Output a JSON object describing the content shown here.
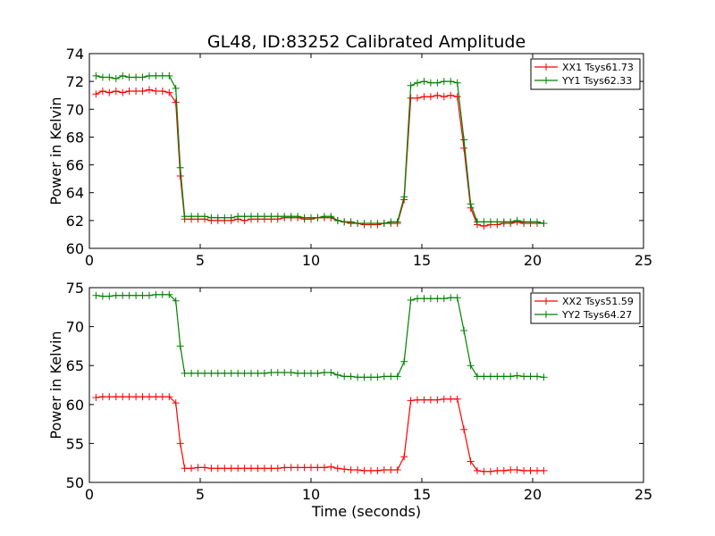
{
  "title": "GL48, ID:83252 Calibrated Amplitude",
  "xlabel": "Time (seconds)",
  "chart_data": [
    {
      "type": "line",
      "ylabel": "Power in Kelvin",
      "xlim": [
        0,
        25
      ],
      "ylim": [
        60,
        74
      ],
      "xticks": [
        "0",
        "5",
        "10",
        "15",
        "20",
        "25"
      ],
      "yticks": [
        "60",
        "62",
        "64",
        "66",
        "68",
        "70",
        "72",
        "74"
      ],
      "legend_position": "top-right",
      "series": [
        {
          "name": "XX1 Tsys61.73",
          "color": "#ff0000",
          "x": [
            0.3,
            0.6,
            0.9,
            1.2,
            1.5,
            1.8,
            2.1,
            2.4,
            2.7,
            3.0,
            3.3,
            3.6,
            3.9,
            4.1,
            4.3,
            4.6,
            4.9,
            5.2,
            5.5,
            5.8,
            6.1,
            6.4,
            6.7,
            7.0,
            7.3,
            7.6,
            7.9,
            8.2,
            8.5,
            8.8,
            9.1,
            9.4,
            9.7,
            10.0,
            10.3,
            10.6,
            10.9,
            11.2,
            11.5,
            11.8,
            12.1,
            12.4,
            12.7,
            13.0,
            13.3,
            13.6,
            13.9,
            14.2,
            14.5,
            14.8,
            15.1,
            15.4,
            15.7,
            16.0,
            16.3,
            16.6,
            16.9,
            17.2,
            17.5,
            17.8,
            18.1,
            18.4,
            18.7,
            19.0,
            19.3,
            19.6,
            19.9,
            20.2,
            20.5
          ],
          "y": [
            71.1,
            71.3,
            71.2,
            71.3,
            71.2,
            71.3,
            71.3,
            71.3,
            71.4,
            71.3,
            71.3,
            71.2,
            70.5,
            65.2,
            62.1,
            62.1,
            62.1,
            62.1,
            62.0,
            62.0,
            62.0,
            62.0,
            62.1,
            62.0,
            62.1,
            62.1,
            62.1,
            62.1,
            62.1,
            62.2,
            62.2,
            62.2,
            62.1,
            62.1,
            62.2,
            62.2,
            62.2,
            62.0,
            61.9,
            61.8,
            61.8,
            61.7,
            61.7,
            61.7,
            61.8,
            61.8,
            61.8,
            63.5,
            70.8,
            70.8,
            70.9,
            70.9,
            71.0,
            70.9,
            71.0,
            70.9,
            67.2,
            62.9,
            61.7,
            61.6,
            61.7,
            61.7,
            61.8,
            61.8,
            61.9,
            61.8,
            61.8,
            61.8,
            61.8
          ]
        },
        {
          "name": "YY1 Tsys62.33",
          "color": "#008000",
          "x": [
            0.3,
            0.6,
            0.9,
            1.2,
            1.5,
            1.8,
            2.1,
            2.4,
            2.7,
            3.0,
            3.3,
            3.6,
            3.9,
            4.1,
            4.3,
            4.6,
            4.9,
            5.2,
            5.5,
            5.8,
            6.1,
            6.4,
            6.7,
            7.0,
            7.3,
            7.6,
            7.9,
            8.2,
            8.5,
            8.8,
            9.1,
            9.4,
            9.7,
            10.0,
            10.3,
            10.6,
            10.9,
            11.2,
            11.5,
            11.8,
            12.1,
            12.4,
            12.7,
            13.0,
            13.3,
            13.6,
            13.9,
            14.2,
            14.5,
            14.8,
            15.1,
            15.4,
            15.7,
            16.0,
            16.3,
            16.6,
            16.9,
            17.2,
            17.5,
            17.8,
            18.1,
            18.4,
            18.7,
            19.0,
            19.3,
            19.6,
            19.9,
            20.2,
            20.5
          ],
          "y": [
            72.4,
            72.3,
            72.3,
            72.2,
            72.4,
            72.3,
            72.3,
            72.3,
            72.4,
            72.4,
            72.4,
            72.4,
            71.5,
            65.8,
            62.3,
            62.3,
            62.3,
            62.3,
            62.2,
            62.2,
            62.2,
            62.2,
            62.3,
            62.3,
            62.3,
            62.3,
            62.3,
            62.3,
            62.3,
            62.3,
            62.3,
            62.3,
            62.2,
            62.2,
            62.2,
            62.3,
            62.3,
            62.0,
            61.9,
            61.9,
            61.8,
            61.8,
            61.8,
            61.8,
            61.8,
            61.9,
            61.9,
            63.7,
            71.7,
            71.9,
            72.0,
            71.9,
            71.9,
            72.0,
            72.0,
            71.9,
            67.8,
            63.2,
            61.9,
            61.9,
            61.9,
            61.9,
            61.9,
            61.9,
            62.0,
            61.9,
            61.9,
            61.9,
            61.8
          ]
        }
      ]
    },
    {
      "type": "line",
      "ylabel": "Power in Kelvin",
      "xlim": [
        0,
        25
      ],
      "ylim": [
        50,
        75
      ],
      "xticks": [
        "0",
        "5",
        "10",
        "15",
        "20",
        "25"
      ],
      "yticks": [
        "50",
        "55",
        "60",
        "65",
        "70",
        "75"
      ],
      "legend_position": "top-right",
      "series": [
        {
          "name": "XX2 Tsys51.59",
          "color": "#ff0000",
          "x": [
            0.3,
            0.6,
            0.9,
            1.2,
            1.5,
            1.8,
            2.1,
            2.4,
            2.7,
            3.0,
            3.3,
            3.6,
            3.9,
            4.1,
            4.3,
            4.6,
            4.9,
            5.2,
            5.5,
            5.8,
            6.1,
            6.4,
            6.7,
            7.0,
            7.3,
            7.6,
            7.9,
            8.2,
            8.5,
            8.8,
            9.1,
            9.4,
            9.7,
            10.0,
            10.3,
            10.6,
            10.9,
            11.2,
            11.5,
            11.8,
            12.1,
            12.4,
            12.7,
            13.0,
            13.3,
            13.6,
            13.9,
            14.2,
            14.5,
            14.8,
            15.1,
            15.4,
            15.7,
            16.0,
            16.3,
            16.6,
            16.9,
            17.2,
            17.5,
            17.8,
            18.1,
            18.4,
            18.7,
            19.0,
            19.3,
            19.6,
            19.9,
            20.2,
            20.5
          ],
          "y": [
            60.9,
            61.0,
            61.0,
            61.0,
            61.0,
            61.0,
            61.0,
            61.0,
            61.0,
            61.0,
            61.0,
            61.0,
            60.2,
            55.0,
            51.8,
            51.8,
            51.9,
            51.9,
            51.8,
            51.8,
            51.8,
            51.8,
            51.8,
            51.8,
            51.8,
            51.8,
            51.8,
            51.8,
            51.8,
            51.9,
            51.9,
            51.9,
            51.9,
            51.9,
            51.9,
            51.9,
            52.0,
            51.8,
            51.7,
            51.6,
            51.6,
            51.5,
            51.5,
            51.5,
            51.6,
            51.6,
            51.6,
            53.3,
            60.5,
            60.6,
            60.6,
            60.6,
            60.6,
            60.7,
            60.7,
            60.7,
            56.8,
            52.7,
            51.5,
            51.4,
            51.4,
            51.5,
            51.5,
            51.6,
            51.6,
            51.5,
            51.5,
            51.5,
            51.5
          ]
        },
        {
          "name": "YY2 Tsys64.27",
          "color": "#008000",
          "x": [
            0.3,
            0.6,
            0.9,
            1.2,
            1.5,
            1.8,
            2.1,
            2.4,
            2.7,
            3.0,
            3.3,
            3.6,
            3.9,
            4.1,
            4.3,
            4.6,
            4.9,
            5.2,
            5.5,
            5.8,
            6.1,
            6.4,
            6.7,
            7.0,
            7.3,
            7.6,
            7.9,
            8.2,
            8.5,
            8.8,
            9.1,
            9.4,
            9.7,
            10.0,
            10.3,
            10.6,
            10.9,
            11.2,
            11.5,
            11.8,
            12.1,
            12.4,
            12.7,
            13.0,
            13.3,
            13.6,
            13.9,
            14.2,
            14.5,
            14.8,
            15.1,
            15.4,
            15.7,
            16.0,
            16.3,
            16.6,
            16.9,
            17.2,
            17.5,
            17.8,
            18.1,
            18.4,
            18.7,
            19.0,
            19.3,
            19.6,
            19.9,
            20.2,
            20.5
          ],
          "y": [
            74.0,
            73.9,
            73.9,
            74.0,
            74.0,
            74.0,
            74.0,
            74.0,
            74.0,
            74.1,
            74.1,
            74.1,
            73.3,
            67.5,
            64.0,
            64.0,
            64.0,
            64.0,
            64.0,
            64.0,
            64.0,
            64.0,
            64.0,
            64.0,
            64.0,
            64.0,
            64.0,
            64.1,
            64.1,
            64.1,
            64.1,
            64.0,
            64.0,
            64.0,
            64.0,
            64.1,
            64.1,
            63.8,
            63.6,
            63.6,
            63.5,
            63.5,
            63.5,
            63.5,
            63.6,
            63.6,
            63.6,
            65.5,
            73.4,
            73.6,
            73.6,
            73.6,
            73.6,
            73.6,
            73.7,
            73.7,
            69.5,
            65.0,
            63.6,
            63.6,
            63.6,
            63.6,
            63.6,
            63.6,
            63.7,
            63.6,
            63.6,
            63.6,
            63.5
          ]
        }
      ]
    }
  ]
}
